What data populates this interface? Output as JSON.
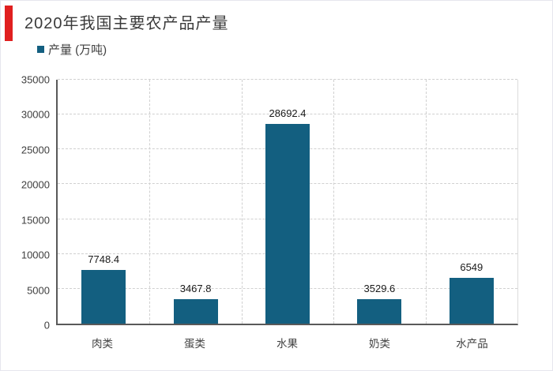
{
  "chart_data": {
    "type": "bar",
    "title": "2020年我国主要农产品产量",
    "legend": "产量 (万吨)",
    "categories": [
      "肉类",
      "蛋类",
      "水果",
      "奶类",
      "水产品"
    ],
    "values": [
      7748.4,
      3467.8,
      28692.4,
      3529.6,
      6549
    ],
    "value_labels": [
      "7748.4",
      "3467.8",
      "28692.4",
      "3529.6",
      "6549"
    ],
    "ylim": [
      0,
      35000
    ],
    "ytick_step": 5000,
    "yticks": [
      0,
      5000,
      10000,
      15000,
      20000,
      25000,
      30000,
      35000
    ],
    "grid": "dashed horizontal gridlines at each y-tick and dashed vertical gridlines at category boundaries",
    "legend_position": "top-left"
  },
  "colors": {
    "bar": "#135f80",
    "accent": "#e01f1f",
    "title_text": "#3a3a3a",
    "legend_text": "#3f3f3f",
    "axis": "#595959",
    "grid": "#d0d0d0",
    "tick_text": "#404040"
  }
}
